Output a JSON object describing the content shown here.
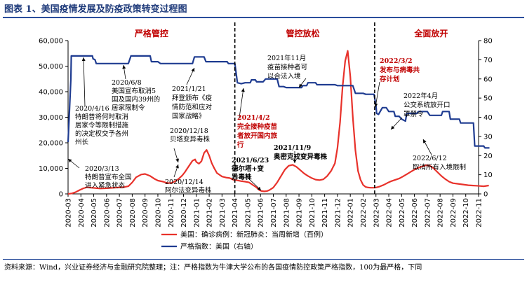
{
  "header": {
    "title": "图表 1、美国疫情发展及防疫政策转变过程图"
  },
  "footnote": "资料来源：Wind，兴业证券经济与金融研究院整理；注：严格指数为牛津大学公布的各国疫情防控政策严格指数，100为最严格，下同",
  "colors": {
    "cases": "#e8322b",
    "stringency": "#1f3c91",
    "phase_text": "#c00000",
    "divider": "#000000"
  },
  "chart_data": {
    "type": "line",
    "title": "",
    "x_tick_labels": [
      "2020-03",
      "2020-04",
      "2020-05",
      "2020-06",
      "2020-07",
      "2020-08",
      "2020-09",
      "2020-10",
      "2020-11",
      "2020-12",
      "2021-01",
      "2021-02",
      "2021-03",
      "2021-04",
      "2021-05",
      "2021-06",
      "2021-07",
      "2021-08",
      "2021-09",
      "2021-10",
      "2021-11",
      "2021-12",
      "2022-01",
      "2022-02",
      "2022-03",
      "2022-04",
      "2022-05",
      "2022-06",
      "2022-07",
      "2022-08",
      "2022-09",
      "2022-10",
      "2022-11"
    ],
    "y_left": {
      "min": 0,
      "max": 60000,
      "ticks": [
        "0",
        "10,000",
        "20,000",
        "30,000",
        "40,000",
        "50,000",
        "60,000"
      ]
    },
    "y_right": {
      "min": 0,
      "max": 80,
      "ticks": [
        "0",
        "10",
        "20",
        "30",
        "40",
        "50",
        "60",
        "70",
        "80"
      ]
    },
    "series": [
      {
        "name": "美国：确诊病例：新冠肺炎：当周新增（百例）",
        "axis": "left",
        "color": "#e8322b",
        "x": [
          0,
          0.3,
          0.6,
          0.9,
          1.2,
          1.5,
          1.8,
          2.1,
          2.5,
          2.9,
          3.2,
          3.6,
          3.9,
          4.3,
          4.7,
          5.0,
          5.3,
          5.7,
          6.0,
          6.4,
          6.7,
          7.0,
          7.4,
          7.7,
          8.0,
          8.3,
          8.6,
          8.9,
          9.1,
          9.3,
          9.5,
          9.7,
          9.9,
          10.0,
          10.2,
          10.4,
          10.6,
          10.8,
          11.0,
          11.2,
          11.4,
          11.6,
          11.8,
          12.0,
          12.3,
          12.6,
          12.9,
          13.2,
          13.5,
          13.8,
          14.1,
          14.4,
          14.7,
          14.9,
          15.1,
          15.3,
          15.5,
          15.7,
          16.0,
          16.3,
          16.6,
          16.9,
          17.2,
          17.5,
          17.8,
          18.1,
          18.4,
          18.7,
          19.0,
          19.3,
          19.6,
          19.9,
          20.2,
          20.5,
          20.8,
          21.0,
          21.2,
          21.4,
          21.6,
          21.8,
          22.0,
          22.2,
          22.4,
          22.6,
          22.8,
          23.0,
          23.2,
          23.4,
          23.6,
          23.8,
          24.0,
          24.3,
          24.6,
          24.9,
          25.2,
          25.5,
          25.8,
          26.1,
          26.4,
          26.7,
          27.0,
          27.3,
          27.6,
          27.9,
          28.2,
          28.5,
          28.8,
          29.1,
          29.4,
          29.7,
          30.0,
          30.3,
          30.6,
          30.9,
          31.2,
          31.5,
          31.8,
          32.1,
          32.4,
          32.8
        ],
        "values": [
          0,
          200,
          700,
          1500,
          2200,
          2600,
          2400,
          2300,
          2100,
          2200,
          2300,
          2400,
          2500,
          2600,
          3000,
          4500,
          6500,
          7600,
          7800,
          7000,
          6000,
          5200,
          4800,
          4300,
          4200,
          4800,
          5800,
          7200,
          8500,
          10000,
          11500,
          13000,
          13500,
          12500,
          11800,
          12800,
          16000,
          17200,
          15000,
          12000,
          10000,
          8200,
          7500,
          6800,
          6400,
          6200,
          5500,
          5300,
          5000,
          4800,
          4500,
          3500,
          2500,
          1500,
          1100,
          1000,
          1100,
          1500,
          2500,
          4500,
          7000,
          9500,
          11000,
          11400,
          10600,
          9300,
          8000,
          7000,
          6200,
          5600,
          5400,
          5700,
          7000,
          9000,
          12000,
          18000,
          28000,
          42000,
          52000,
          56000,
          46000,
          30000,
          17000,
          9000,
          5500,
          3500,
          2700,
          2500,
          2400,
          2400,
          2500,
          2900,
          3500,
          4300,
          5000,
          5500,
          6000,
          6800,
          7700,
          8600,
          9500,
          10200,
          10800,
          11200,
          11000,
          10000,
          8500,
          7000,
          5800,
          4800,
          4200,
          4000,
          3800,
          3600,
          3400,
          3300,
          3200,
          3100,
          3000,
          3300
        ]
      },
      {
        "name": "严格指数：美国（右轴）",
        "axis": "right",
        "color": "#1f3c91",
        "steps": [
          [
            0,
            27
          ],
          [
            0.22,
            60
          ],
          [
            0.25,
            72
          ],
          [
            1.9,
            72
          ],
          [
            1.95,
            70.5
          ],
          [
            2.1,
            70
          ],
          [
            2.2,
            68
          ],
          [
            4.7,
            68
          ],
          [
            4.9,
            72
          ],
          [
            6.4,
            72
          ],
          [
            6.5,
            69
          ],
          [
            7.0,
            69
          ],
          [
            7.2,
            68
          ],
          [
            9.7,
            68
          ],
          [
            9.85,
            71.5
          ],
          [
            10.6,
            71.5
          ],
          [
            10.75,
            69
          ],
          [
            12.4,
            69
          ],
          [
            12.5,
            68
          ],
          [
            13.0,
            68
          ],
          [
            13.2,
            58
          ],
          [
            13.5,
            57.5
          ],
          [
            13.8,
            58
          ],
          [
            14.2,
            58
          ],
          [
            14.3,
            59.5
          ],
          [
            14.6,
            59.5
          ],
          [
            14.7,
            58.5
          ],
          [
            15.2,
            58.5
          ],
          [
            15.4,
            60
          ],
          [
            16.3,
            60
          ],
          [
            16.45,
            56
          ],
          [
            16.8,
            56
          ],
          [
            17.0,
            55.5
          ],
          [
            18.2,
            55.5
          ],
          [
            18.3,
            56.5
          ],
          [
            18.6,
            56.5
          ],
          [
            18.7,
            58
          ],
          [
            19.3,
            58
          ],
          [
            19.4,
            57
          ],
          [
            20.8,
            57
          ],
          [
            21.0,
            56.5
          ],
          [
            22.2,
            56.5
          ],
          [
            22.4,
            52.5
          ],
          [
            23.0,
            52.5
          ],
          [
            23.2,
            52
          ],
          [
            23.85,
            52
          ],
          [
            24.0,
            46
          ],
          [
            24.05,
            42
          ],
          [
            24.2,
            41.5
          ],
          [
            24.5,
            45
          ],
          [
            24.8,
            45
          ],
          [
            25.0,
            43
          ],
          [
            25.4,
            43
          ],
          [
            25.5,
            40.5
          ],
          [
            25.8,
            40.5
          ],
          [
            26.0,
            39
          ],
          [
            26.3,
            38
          ],
          [
            26.4,
            42
          ],
          [
            27.2,
            42
          ],
          [
            27.3,
            43
          ],
          [
            28.0,
            43
          ],
          [
            28.2,
            41
          ],
          [
            29.1,
            41
          ],
          [
            29.2,
            43
          ],
          [
            29.7,
            43
          ],
          [
            29.8,
            39
          ],
          [
            30.5,
            39
          ],
          [
            30.6,
            37
          ],
          [
            31.6,
            37
          ],
          [
            31.7,
            25
          ],
          [
            32.4,
            25
          ],
          [
            32.5,
            24
          ],
          [
            32.85,
            24
          ]
        ]
      }
    ],
    "phases": [
      {
        "label": "严格管控",
        "x": 6.5
      },
      {
        "label": "管控放松",
        "x": 18.3
      },
      {
        "label": "全面放开",
        "x": 28.3
      }
    ],
    "dividers": [
      13.0,
      23.9
    ],
    "annotations": [
      {
        "id": "a1",
        "style": "black",
        "lines": [
          "2020/3/13",
          "特朗普宣布全国",
          "进入紧急状态"
        ]
      },
      {
        "id": "a2",
        "style": "black",
        "lines": [
          "2020/4/16",
          "特朗普将何时取消",
          "居家令等限制措施",
          "的决定权交予各州",
          "州长"
        ]
      },
      {
        "id": "a3",
        "style": "black",
        "lines": [
          "2020/6/8",
          "美国宣布取消5",
          "国及国内39州的",
          "居家限制令"
        ]
      },
      {
        "id": "a4",
        "style": "black",
        "lines": [
          "2021/1/21",
          "拜登颁布《疫",
          "情防范和应对",
          "国家战略》"
        ]
      },
      {
        "id": "a5",
        "style": "black",
        "lines": [
          "2020/12/18",
          "贝塔变异毒株"
        ]
      },
      {
        "id": "a6",
        "style": "black",
        "lines": [
          "2020/12/14",
          "阿尔法变异毒株"
        ]
      },
      {
        "id": "a7",
        "style": "red",
        "lines": [
          "2021/4/2",
          "完全接种疫苗",
          "者放开国内旅",
          "行"
        ]
      },
      {
        "id": "a8",
        "style": "bold",
        "lines": [
          "2021/6/23",
          "德尔塔+变",
          "异毒株"
        ]
      },
      {
        "id": "a9",
        "style": "bold",
        "lines": [
          "2021/11/9",
          "奥密克戎变异毒株"
        ]
      },
      {
        "id": "a10",
        "style": "black",
        "lines": [
          "2021年11月",
          "疫苗接种者可",
          "以合法入境"
        ]
      },
      {
        "id": "a11",
        "style": "red",
        "lines": [
          "2022/3/2",
          "发布与病毒共",
          "存计划"
        ]
      },
      {
        "id": "a12",
        "style": "black",
        "lines": [
          "2022年4月",
          "公交系统放开口",
          "罩禁令"
        ]
      },
      {
        "id": "a13",
        "style": "black",
        "lines": [
          "2022/6/12",
          "取消所有入境限制"
        ]
      }
    ]
  }
}
